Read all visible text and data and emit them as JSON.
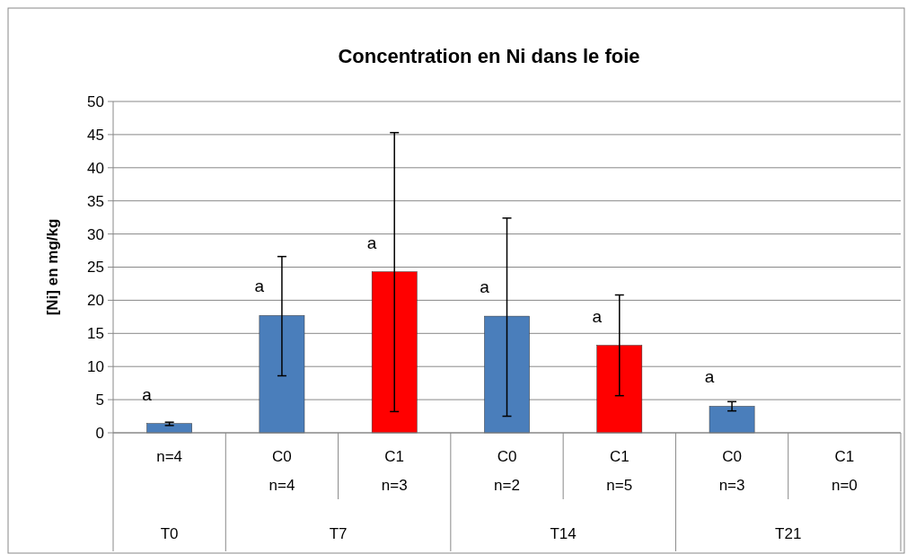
{
  "chart_data": {
    "type": "bar",
    "title": "Concentration en Ni dans le foie",
    "ylabel": "[Ni] en mg/kg",
    "categories": [
      "n=4",
      "C0\nn=4",
      "C1\nn=3",
      "C0\nn=2",
      "C1\nn=5",
      "C0\nn=3",
      "C1\nn=0"
    ],
    "values": [
      1.4,
      17.7,
      24.3,
      17.6,
      13.2,
      4.0,
      null
    ],
    "colors": [
      "#4a7ebb",
      "#4a7ebb",
      "#ff0000",
      "#4a7ebb",
      "#ff0000",
      "#4a7ebb",
      null
    ],
    "errors": [
      [
        1.1,
        1.6
      ],
      [
        8.6,
        26.6
      ],
      [
        3.2,
        45.3
      ],
      [
        2.5,
        32.4
      ],
      [
        5.6,
        20.8
      ],
      [
        3.3,
        4.7
      ],
      null
    ],
    "ylim": [
      0,
      50
    ],
    "yticks": [
      0,
      5,
      10,
      15,
      20,
      25,
      30,
      35,
      40,
      45,
      50
    ],
    "grid": "y",
    "annotations": [
      "T0",
      "T7",
      "T14",
      "T21",
      {
        "text": "a",
        "x": "n=4",
        "y": 1.4
      },
      {
        "text": "a",
        "x": "C0\nn=4",
        "y": 17.7
      },
      {
        "text": "a",
        "x": "C1\nn=3",
        "y": 24.3
      },
      {
        "text": "a",
        "x": "C0\nn=2",
        "y": 17.6
      },
      {
        "text": "a",
        "x": "C1\nn=5",
        "y": 13.2
      },
      {
        "text": "a",
        "x": "C0\nn=3",
        "y": 4.0
      }
    ]
  }
}
